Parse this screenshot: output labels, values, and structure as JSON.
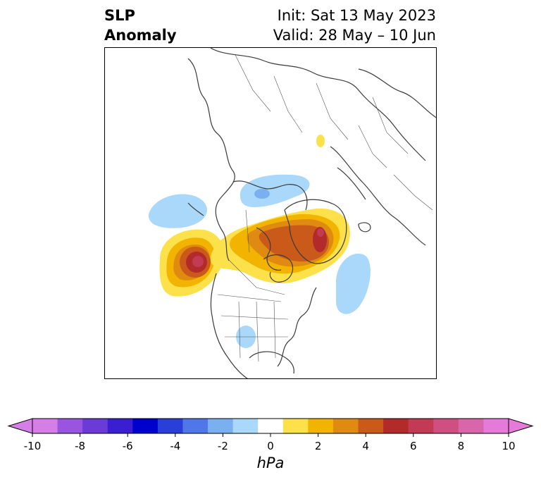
{
  "header": {
    "left_line1": "SLP",
    "left_line2": "Anomaly",
    "right_line1": "Init: Sat 13 May 2023",
    "right_line2": "Valid: 28 May – 10 Jun"
  },
  "colorbar": {
    "units": "hPa",
    "ticks": [
      "-10",
      "-8",
      "-6",
      "-4",
      "-2",
      "0",
      "2",
      "4",
      "6",
      "8",
      "10"
    ],
    "tick_values": [
      -10,
      -8,
      -6,
      -4,
      -2,
      0,
      2,
      4,
      6,
      8,
      10
    ],
    "extend": "both",
    "colors": [
      "#d57ee8",
      "#9a55e0",
      "#6b3bd8",
      "#3a1fd0",
      "#0000cc",
      "#2a3fd8",
      "#4f77e8",
      "#7ab0f0",
      "#a9d8fa",
      "#ffffff",
      "#fde14a",
      "#f2b400",
      "#df8a10",
      "#c95a1a",
      "#b22b2a",
      "#c33a55",
      "#cf4f80",
      "#d965aa",
      "#e67ad8"
    ],
    "under_color": "#d57ee8",
    "over_color": "#e67ad8"
  },
  "map": {
    "anomaly_features": [
      {
        "name": "positive-anomaly-north-pacific",
        "max_value": 6
      },
      {
        "name": "positive-anomaly-greenland-canada",
        "max_value": 6
      },
      {
        "name": "positive-anomaly-arctic-small",
        "max_value": 1
      },
      {
        "name": "negative-anomaly-bering",
        "min_value": -2
      },
      {
        "name": "negative-anomaly-arctic-ocean",
        "min_value": -3
      },
      {
        "name": "negative-anomaly-north-atlantic",
        "min_value": -2
      },
      {
        "name": "negative-anomaly-texas",
        "min_value": -2
      }
    ]
  }
}
